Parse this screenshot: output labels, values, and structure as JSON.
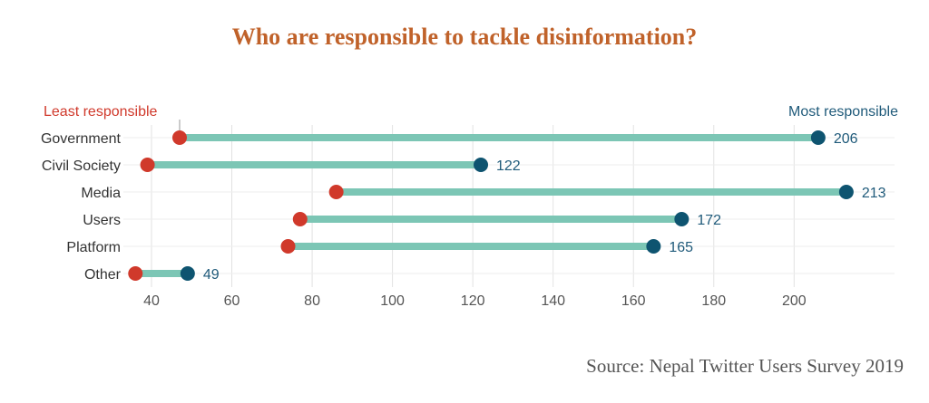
{
  "chart_data": {
    "type": "dumbbell",
    "title": "Who are responsible to tackle disinformation?",
    "source": "Source: Nepal Twitter Users Survey 2019",
    "annotations": {
      "least": "Least responsible",
      "most": "Most responsible"
    },
    "categories": [
      "Government",
      "Civil Society",
      "Media",
      "Users",
      "Platform",
      "Other"
    ],
    "series": [
      {
        "name": "Least responsible",
        "values": [
          47,
          39,
          86,
          77,
          74,
          36
        ]
      },
      {
        "name": "Most responsible",
        "values": [
          206,
          122,
          213,
          172,
          165,
          49
        ]
      }
    ],
    "x_ticks": [
      40,
      60,
      80,
      100,
      120,
      140,
      160,
      180,
      200
    ],
    "xlim": [
      33,
      225
    ],
    "grid": true,
    "colors": {
      "title": "#c0622a",
      "least": "#d0392b",
      "most": "#0e5470",
      "bar": "#7cc6b5",
      "least_label": "#d0392b",
      "most_label": "#1f5a7a",
      "value_label": "#1f5a7a",
      "grid": "#e2e2e2"
    }
  }
}
